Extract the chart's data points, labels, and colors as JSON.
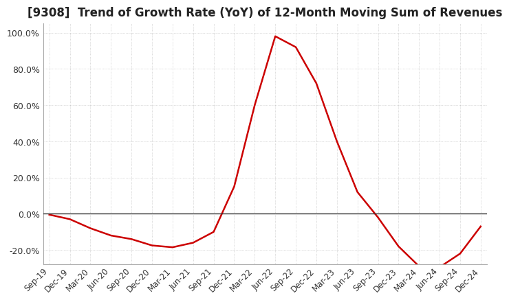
{
  "title": "[9308]  Trend of Growth Rate (YoY) of 12-Month Moving Sum of Revenues",
  "title_fontsize": 12,
  "line_color": "#cc0000",
  "background_color": "#ffffff",
  "grid_color": "#aaaaaa",
  "ylim": [
    -28,
    105
  ],
  "yticks": [
    -20.0,
    0.0,
    20.0,
    40.0,
    60.0,
    80.0,
    100.0
  ],
  "x_labels": [
    "Sep-19",
    "Dec-19",
    "Mar-20",
    "Jun-20",
    "Sep-20",
    "Dec-20",
    "Mar-21",
    "Jun-21",
    "Sep-21",
    "Dec-21",
    "Mar-22",
    "Jun-22",
    "Sep-22",
    "Dec-22",
    "Mar-23",
    "Jun-23",
    "Sep-23",
    "Dec-23",
    "Mar-24",
    "Jun-24",
    "Sep-24",
    "Dec-24"
  ],
  "values": [
    -0.5,
    -3.0,
    -8.0,
    -12.0,
    -14.0,
    -17.5,
    -18.5,
    -16.0,
    -10.0,
    15.0,
    60.0,
    98.0,
    92.0,
    72.0,
    40.0,
    12.0,
    -2.0,
    -18.0,
    -29.0,
    -29.5,
    -22.0,
    -7.0
  ]
}
